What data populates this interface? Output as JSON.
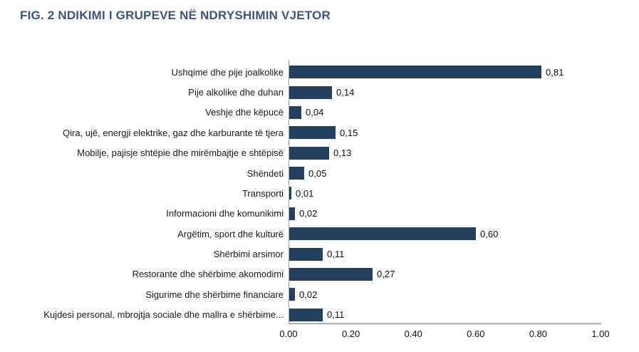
{
  "figure": {
    "title": "FIG. 2 NDIKIMI I GRUPEVE NË NDRYSHIMIN VJETOR"
  },
  "chart_data": {
    "type": "bar",
    "orientation": "horizontal",
    "title": "FIG. 2 NDIKIMI I GRUPEVE NË NDRYSHIMIN VJETOR",
    "categories": [
      "Ushqime dhe pije joalkolike",
      "Pije alkolike dhe duhan",
      "Veshje dhe këpucë",
      "Qira, ujë, energji elektrike, gaz dhe karburante të tjera",
      "Mobilje, pajisje shtëpie dhe mirëmbajtje e shtëpisë",
      "Shëndeti",
      "Transporti",
      "Informacioni dhe komunikimi",
      "Argëtim, sport dhe kulturë",
      "Shërbimi arsimor",
      "Restorante dhe shërbime akomodimi",
      "Sigurime dhe shërbime financiare",
      "Kujdesi personal, mbrojtja sociale dhe mallra e shërbime..."
    ],
    "values": [
      0.81,
      0.14,
      0.04,
      0.15,
      0.13,
      0.05,
      0.01,
      0.02,
      0.6,
      0.11,
      0.27,
      0.02,
      0.11
    ],
    "value_labels": [
      "0,81",
      "0,14",
      "0,04",
      "0,15",
      "0,13",
      "0,05",
      "0,01",
      "0,02",
      "0,60",
      "0,11",
      "0,27",
      "0,02",
      "0,11"
    ],
    "x_ticks": [
      "0.00",
      "0.20",
      "0.40",
      "0.60",
      "0.80",
      "1.00"
    ],
    "x_tick_values": [
      0.0,
      0.2,
      0.4,
      0.6,
      0.8,
      1.0
    ],
    "xlim": [
      0,
      1
    ],
    "xlabel": "",
    "ylabel": "",
    "legend": "none",
    "grid": false,
    "data_labels": true,
    "colors": {
      "bar": "#24405E",
      "title": "#3E547E",
      "axis_line": "#A6A6A6",
      "text": "#111111"
    }
  }
}
